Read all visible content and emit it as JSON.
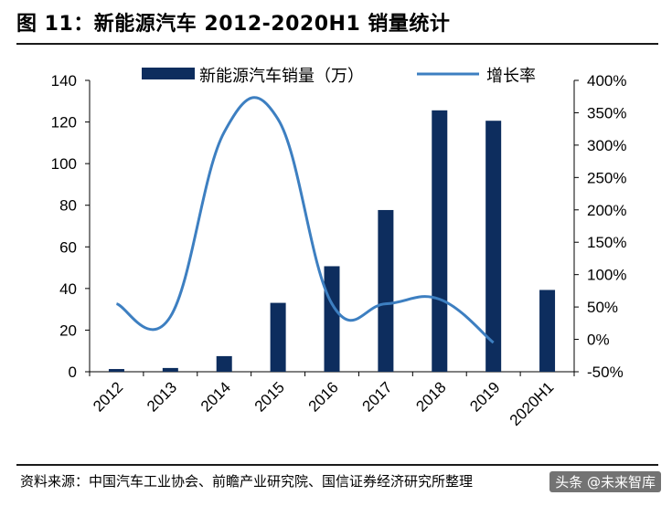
{
  "title": "图 11：新能源汽车 2012-2020H1 销量统计",
  "source_note": "资料来源：中国汽车工业协会、前瞻产业研究院、国信证券经济研究所整理",
  "watermark": "头条 @未来智库",
  "chart_data": {
    "type": "bar+line",
    "categories": [
      "2012",
      "2013",
      "2014",
      "2015",
      "2016",
      "2017",
      "2018",
      "2019",
      "2020H1"
    ],
    "series": [
      {
        "name": "新能源汽车销量（万）",
        "type": "bar",
        "axis": "left",
        "color": "#0d2d5e",
        "values": [
          1.3,
          1.8,
          7.5,
          33.1,
          50.7,
          77.7,
          125.6,
          120.6,
          39.3
        ]
      },
      {
        "name": "增长率",
        "type": "line",
        "axis": "right",
        "color": "#3d7fc1",
        "values": [
          0.55,
          0.35,
          3.2,
          3.4,
          0.55,
          0.55,
          0.62,
          -0.05,
          null
        ]
      }
    ],
    "y_left": {
      "min": 0,
      "max": 140,
      "ticks": [
        "0",
        "20",
        "40",
        "60",
        "80",
        "100",
        "120",
        "140"
      ]
    },
    "y_right": {
      "min": -0.5,
      "max": 4.0,
      "ticks": [
        "-50%",
        "0%",
        "50%",
        "100%",
        "150%",
        "200%",
        "250%",
        "300%",
        "350%",
        "400%"
      ]
    },
    "legend_position": "top",
    "grid": false
  }
}
